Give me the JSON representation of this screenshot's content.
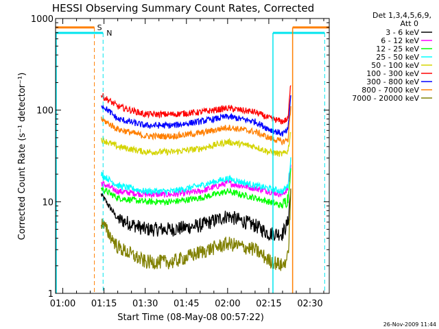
{
  "chart_data": {
    "type": "line",
    "title": "HESSI Observing Summary Count Rates, Corrected",
    "xlabel": "Start Time (08-May-08 00:57:22)",
    "ylabel": "Corrected Count Rate (s⁻¹ detector⁻¹)",
    "y_scale": "log",
    "ylim": [
      1,
      1000
    ],
    "xlim": [
      "00:57:22",
      "02:37:00"
    ],
    "x_tick_labels": [
      "01:00",
      "01:15",
      "01:30",
      "01:45",
      "02:00",
      "02:15",
      "02:30"
    ],
    "y_tick_labels": [
      "1",
      "10",
      "100",
      "1000"
    ],
    "legend_header": [
      "Det 1,3,4,5,6,9,",
      "Att 0"
    ],
    "legend_position": "right-outside",
    "flag_labels": [
      "S",
      "N"
    ],
    "footer_timestamp": "26-Nov-2009 11:44",
    "colors": {
      "saa_flag": "#ff7f00",
      "night_flag": "#00e5ee"
    },
    "flags": {
      "saa": {
        "label": "S",
        "intervals": [
          [
            "00:57:22",
            "01:11:30"
          ],
          [
            "02:23:40",
            "02:37:00"
          ]
        ]
      },
      "night": {
        "label": "N",
        "intervals": [
          [
            "00:57:22",
            "01:14:40"
          ],
          [
            "02:16:30",
            "02:35:20"
          ]
        ]
      }
    },
    "x": [
      "01:14",
      "01:20",
      "01:30",
      "01:40",
      "01:50",
      "02:00",
      "02:10",
      "02:15",
      "02:20",
      "02:22",
      "02:23"
    ],
    "series": [
      {
        "name": "3 - 6 keV",
        "color": "#000000",
        "values": [
          12,
          6.5,
          5,
          5,
          5.5,
          7,
          5.5,
          4.5,
          4.5,
          6,
          14
        ]
      },
      {
        "name": "6 - 12 keV",
        "color": "#ff00ff",
        "values": [
          16,
          13,
          12,
          12,
          13,
          16,
          14,
          13,
          12,
          14,
          25
        ]
      },
      {
        "name": "12 - 25 keV",
        "color": "#00ff00",
        "values": [
          14,
          11,
          10,
          10,
          11,
          13,
          11,
          10,
          9,
          11,
          22
        ]
      },
      {
        "name": "25 - 50 keV",
        "color": "#00ffff",
        "values": [
          20,
          15,
          13,
          13,
          15,
          18,
          15,
          14,
          13,
          15,
          30
        ]
      },
      {
        "name": "50 - 100 keV",
        "color": "#d4d400",
        "values": [
          48,
          40,
          35,
          35,
          38,
          45,
          40,
          35,
          33,
          36,
          60
        ]
      },
      {
        "name": "100 - 300 keV",
        "color": "#ff0000",
        "values": [
          145,
          110,
          90,
          90,
          95,
          105,
          95,
          82,
          75,
          80,
          200
        ]
      },
      {
        "name": "300 - 800 keV",
        "color": "#0000ff",
        "values": [
          115,
          80,
          68,
          68,
          75,
          85,
          75,
          62,
          55,
          60,
          150
        ]
      },
      {
        "name": "800 - 7000 keV",
        "color": "#ff7f00",
        "values": [
          80,
          62,
          52,
          52,
          56,
          65,
          58,
          50,
          45,
          48,
          110
        ]
      },
      {
        "name": "7000 - 20000 keV",
        "color": "#808000",
        "values": [
          6,
          3.2,
          2.2,
          2.2,
          2.8,
          3.5,
          3,
          2.3,
          2,
          2.5,
          12
        ]
      }
    ]
  }
}
